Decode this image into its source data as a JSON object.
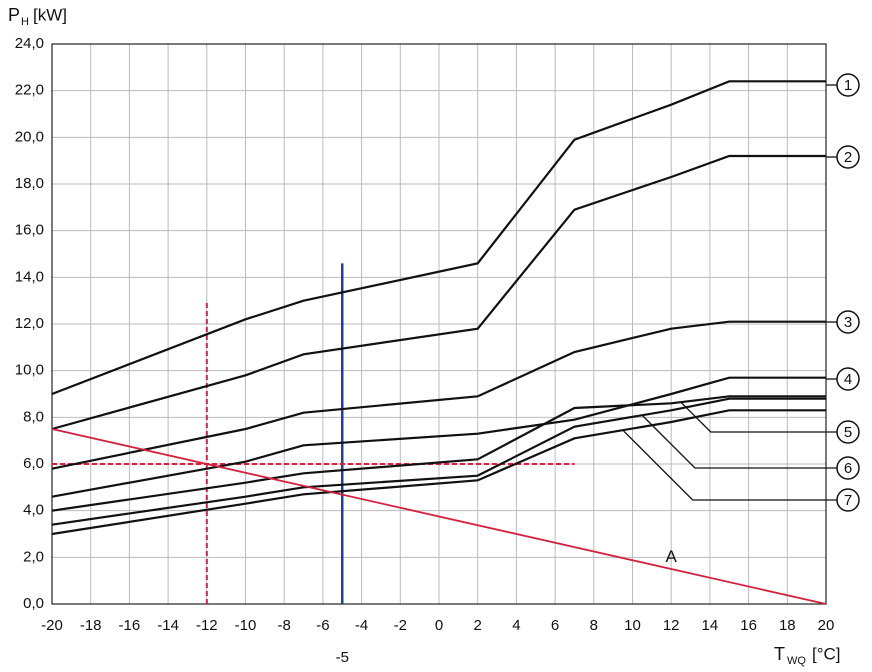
{
  "chart_data": {
    "type": "line",
    "y_label": {
      "main": "P",
      "sub": "H",
      "unit": "[kW]"
    },
    "x_label": {
      "main": "T",
      "sub": "WQ",
      "unit": "[°C]"
    },
    "x": [
      -20,
      -10,
      -7,
      2,
      7,
      12,
      15,
      20
    ],
    "series": [
      {
        "name": "1",
        "color": "#111111",
        "values": [
          9.0,
          12.2,
          13.0,
          14.6,
          19.9,
          21.4,
          22.4,
          22.4
        ]
      },
      {
        "name": "2",
        "color": "#111111",
        "values": [
          7.5,
          9.8,
          10.7,
          11.8,
          16.9,
          18.3,
          19.2,
          19.2
        ]
      },
      {
        "name": "3",
        "color": "#111111",
        "values": [
          5.8,
          7.5,
          8.2,
          8.9,
          10.8,
          11.8,
          12.1,
          12.1
        ]
      },
      {
        "name": "4",
        "color": "#111111",
        "values": [
          4.6,
          6.1,
          6.8,
          7.3,
          7.9,
          9.0,
          9.7,
          9.7
        ]
      },
      {
        "name": "5",
        "color": "#111111",
        "values": [
          4.0,
          5.2,
          5.6,
          6.2,
          8.4,
          8.6,
          8.9,
          8.9
        ]
      },
      {
        "name": "6",
        "color": "#111111",
        "values": [
          3.4,
          4.6,
          5.0,
          5.5,
          7.6,
          8.3,
          8.8,
          8.8
        ]
      },
      {
        "name": "7",
        "color": "#111111",
        "values": [
          3.0,
          4.3,
          4.7,
          5.3,
          7.1,
          7.8,
          8.3,
          8.3
        ]
      },
      {
        "name": "A",
        "color": "#d4213d",
        "x": [
          -20,
          20
        ],
        "values": [
          7.5,
          0
        ]
      }
    ],
    "guides": [
      {
        "orientation": "v",
        "at": -5,
        "from": 0,
        "to": 14.6,
        "color": "#1f3f9f",
        "label": "-5"
      },
      {
        "orientation": "v",
        "at": -12,
        "from": 0,
        "to": 12.9,
        "color": "#d4213d",
        "dashed": true
      },
      {
        "orientation": "h",
        "at": 6,
        "from": -20,
        "to": 7,
        "color": "#d4213d",
        "dashed": true
      }
    ],
    "xlim": [
      -20,
      20
    ],
    "ylim": [
      0,
      24
    ],
    "xticks": [
      -20,
      -18,
      -16,
      -14,
      -12,
      -10,
      -8,
      -6,
      -4,
      -2,
      0,
      2,
      4,
      6,
      8,
      10,
      12,
      14,
      16,
      18,
      20
    ],
    "yticks": [
      {
        "value": 0,
        "label": "0,0"
      },
      {
        "value": 2,
        "label": "2,0"
      },
      {
        "value": 4,
        "label": "4,0"
      },
      {
        "value": 6,
        "label": "6,0"
      },
      {
        "value": 8,
        "label": "8,0"
      },
      {
        "value": 10,
        "label": "10,0"
      },
      {
        "value": 12,
        "label": "12,0"
      },
      {
        "value": 14,
        "label": "14,0"
      },
      {
        "value": 16,
        "label": "16,0"
      },
      {
        "value": 18,
        "label": "18,0"
      },
      {
        "value": 20,
        "label": "20,0"
      },
      {
        "value": 22,
        "label": "22,0"
      },
      {
        "value": 24,
        "label": "24,0"
      }
    ],
    "grid": true
  }
}
